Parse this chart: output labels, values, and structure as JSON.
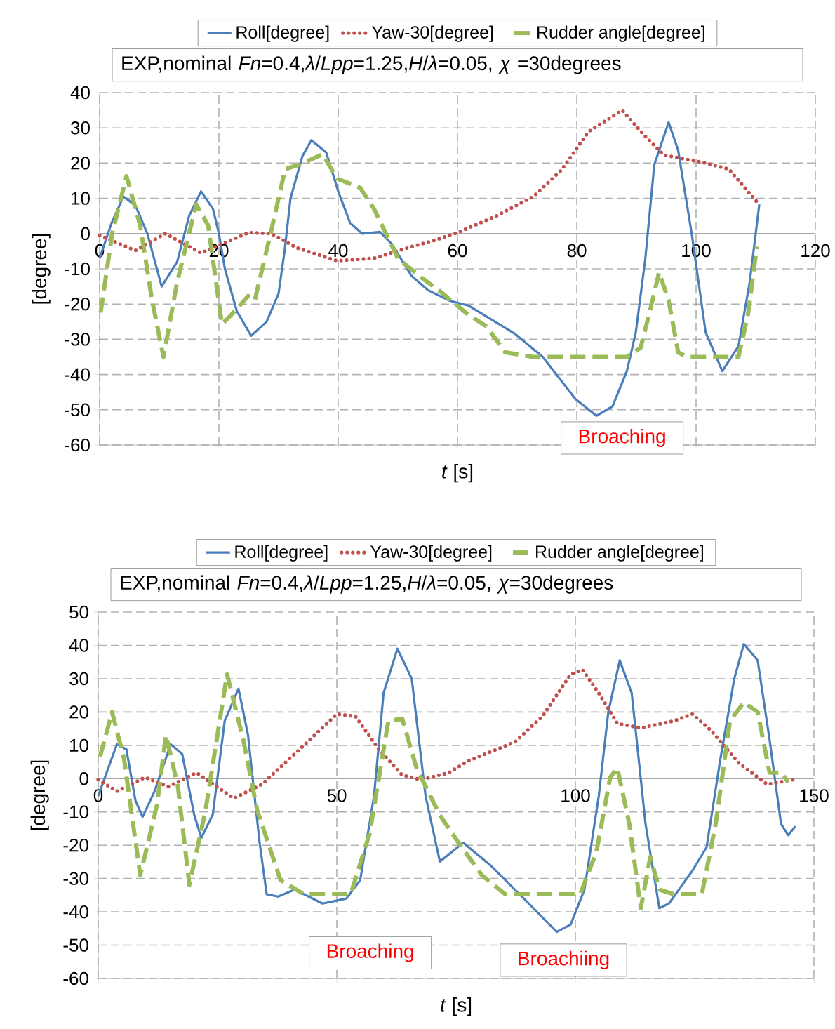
{
  "chart_data": [
    {
      "type": "line",
      "title": "EXP,nominal *Fn*=0.4,*λ*/*Lpp*=1.25,*H*/*λ*=0.05, *χ* =30degrees",
      "xlabel": "*t* [s]",
      "ylabel": "[degree]",
      "xlim": [
        0,
        120
      ],
      "ylim": [
        -60,
        40
      ],
      "xticks": [
        0,
        20,
        40,
        60,
        80,
        100,
        120
      ],
      "yticks": [
        -60,
        -50,
        -40,
        -30,
        -20,
        -10,
        0,
        10,
        20,
        30,
        40
      ],
      "grid": true,
      "legend": "top",
      "annotations": [
        "Broaching"
      ],
      "series": [
        {
          "name": "Roll[degree]",
          "color": "#4a7ebb",
          "line_style": "solid",
          "x": [
            0,
            2,
            4,
            6,
            8,
            10.4,
            13,
            15,
            17,
            19,
            20,
            21,
            23,
            25.4,
            28,
            30,
            31,
            32,
            34,
            35.5,
            38,
            40,
            42,
            44,
            47,
            49,
            52.3,
            55,
            58.6,
            61.8,
            69.6,
            74.3,
            79.8,
            83.3,
            86,
            88.4,
            89.9,
            91.5,
            93,
            95.4,
            97,
            99.3,
            101.6,
            104.4,
            107.1,
            109,
            110.6
          ],
          "values": [
            -7,
            3,
            10.5,
            8,
            0,
            -15,
            -8,
            5,
            12,
            7,
            0,
            -10,
            -22,
            -29,
            -25,
            -17,
            -5,
            10,
            22,
            26.5,
            23,
            12,
            3,
            0,
            0.5,
            -3,
            -12,
            -16,
            -19,
            -20.4,
            -28.4,
            -35,
            -47,
            -51.7,
            -49,
            -39,
            -28,
            -7,
            19.6,
            31.6,
            23.6,
            -0.4,
            -28,
            -39,
            -32,
            -13.7,
            8.3
          ]
        },
        {
          "name": "Yaw-30[degree]",
          "color": "#c0504d",
          "line_style": "dotted",
          "x": [
            0,
            6,
            11,
            17,
            25,
            28.8,
            33,
            39.8,
            46,
            52.3,
            56,
            60,
            66.5,
            72.7,
            77.4,
            82,
            87.6,
            91.5,
            94.6,
            100.9,
            105.5,
            110.2
          ],
          "values": [
            -0.5,
            -4.8,
            0,
            -5.5,
            0.3,
            0,
            -4,
            -7.7,
            -7,
            -3.7,
            -2,
            0.3,
            5,
            10.5,
            18,
            29,
            35,
            27.6,
            22.3,
            20.3,
            18.3,
            9
          ]
        },
        {
          "name": "Rudder angle[degree]",
          "color": "#9bbb59",
          "line_style": "dashed",
          "x": [
            0,
            2.1,
            4.5,
            6.8,
            8.8,
            10.7,
            13,
            16.2,
            18.2,
            20.5,
            22.1,
            24.9,
            26,
            28.8,
            31.1,
            33.5,
            37.4,
            39.8,
            43.7,
            46,
            50,
            53.9,
            57.1,
            61.8,
            64.9,
            68,
            72.7,
            88.4,
            90.7,
            92.3,
            93.8,
            95.4,
            97,
            98.5,
            107.1,
            108.7,
            110.2
          ],
          "values": [
            -24.4,
            0,
            16.3,
            2.3,
            -19,
            -35,
            -13.7,
            8.3,
            2.3,
            -25.7,
            -23,
            -17.7,
            -19,
            1,
            18.3,
            19.6,
            22.5,
            15.6,
            13,
            7,
            -7,
            -12.4,
            -16.4,
            -23,
            -26.4,
            -33.7,
            -35,
            -35,
            -32.4,
            -21.7,
            -11,
            -19,
            -33.7,
            -35,
            -35,
            -23,
            -3.7
          ]
        }
      ]
    },
    {
      "type": "line",
      "title": "EXP,nominal *Fn*=0.4,*λ*/*Lpp*=1.25,*H*/*λ*=0.05, *χ*=30degrees",
      "xlabel": "*t* [s]",
      "ylabel": "[degree]",
      "xlim": [
        0,
        150
      ],
      "ylim": [
        -60,
        50
      ],
      "xticks": [
        0,
        50,
        100,
        150
      ],
      "yticks": [
        -60,
        -50,
        -40,
        -30,
        -20,
        -10,
        0,
        10,
        20,
        30,
        40,
        50
      ],
      "grid": true,
      "legend": "top",
      "annotations": [
        "Broaching",
        "Broachiing"
      ],
      "series": [
        {
          "name": "Roll[degree]",
          "color": "#4a7ebb",
          "line_style": "solid",
          "x": [
            0,
            3.9,
            5.9,
            7.8,
            9.3,
            11.8,
            15.2,
            17.6,
            20.1,
            21.6,
            24,
            26.5,
            29.4,
            31.4,
            33.8,
            35.3,
            37.7,
            41.2,
            47,
            52,
            54.9,
            57.8,
            59.8,
            62.7,
            65.7,
            68.6,
            71.6,
            76.5,
            82.4,
            89.2,
            96.1,
            99,
            101.9,
            104.9,
            106.9,
            109.3,
            111.8,
            114.7,
            117.6,
            119.6,
            124.5,
            127.5,
            130.4,
            133.3,
            135.3,
            138.2,
            140.7,
            143.1,
            144.6,
            146.1
          ],
          "values": [
            -5.2,
            10.3,
            8.8,
            -6.6,
            -11.5,
            -3.8,
            10.3,
            7.4,
            -10.8,
            -17.8,
            -10.8,
            17.3,
            27,
            13,
            -19,
            -34.7,
            -35.4,
            -33.3,
            -37.5,
            -36,
            -30.5,
            -5.2,
            25.7,
            39,
            30,
            -5.2,
            -24.9,
            -19.2,
            -26.3,
            -36,
            -46,
            -43.8,
            -33.3,
            -5.2,
            20,
            35.5,
            25.7,
            -13.6,
            -38.9,
            -37.5,
            -27.7,
            -20.6,
            6,
            30,
            40.4,
            35.5,
            11.7,
            -13.6,
            -17,
            -14.3
          ]
        },
        {
          "name": "Yaw-30[degree]",
          "color": "#c0504d",
          "line_style": "dotted",
          "x": [
            0,
            3.9,
            9.8,
            14.7,
            20.6,
            28.4,
            34.3,
            42.2,
            50,
            53.9,
            58.8,
            63.7,
            67.6,
            73.5,
            77.5,
            87.3,
            93.1,
            99,
            101.5,
            104.9,
            108.8,
            113.7,
            120.6,
            124.5,
            128.4,
            134.3,
            140.2,
            145.6
          ],
          "values": [
            -0.3,
            -3.8,
            0.4,
            -2.4,
            1.8,
            -5.9,
            -1.7,
            8.8,
            19.4,
            18.7,
            8.8,
            1.1,
            -0.3,
            1.8,
            5.3,
            11,
            18.7,
            31.3,
            32.7,
            25.7,
            16.6,
            15.2,
            17.3,
            19.4,
            14.5,
            4.6,
            -1.7,
            -0.3
          ]
        },
        {
          "name": "Rudder angle[degree]",
          "color": "#9bbb59",
          "line_style": "dashed",
          "x": [
            0,
            2.9,
            5.4,
            8.8,
            12.3,
            14.2,
            16.7,
            19.1,
            22.5,
            27,
            30.4,
            33.3,
            38.2,
            43.1,
            52.9,
            56.9,
            60.8,
            63.7,
            66.7,
            71.6,
            75.5,
            80.4,
            85.3,
            101,
            104.4,
            107.3,
            108.8,
            111.3,
            113.7,
            115.7,
            117.6,
            120.6,
            126.5,
            129.4,
            132.4,
            135.3,
            138.2,
            140.7,
            143.1,
            144.6
          ],
          "values": [
            4.6,
            20,
            6,
            -29,
            -8,
            13,
            -2.4,
            -31.9,
            -9.4,
            31.3,
            11.7,
            -9.4,
            -30.5,
            -34.7,
            -34.7,
            -16.4,
            17.3,
            18,
            3.2,
            -11,
            -19.2,
            -29,
            -34.7,
            -34.7,
            -22,
            0.4,
            3.2,
            -13.6,
            -38.9,
            -23.5,
            -33.3,
            -34.7,
            -34.7,
            -13.6,
            17.3,
            22.9,
            20,
            1.8,
            1.8,
            -1
          ]
        }
      ]
    }
  ]
}
